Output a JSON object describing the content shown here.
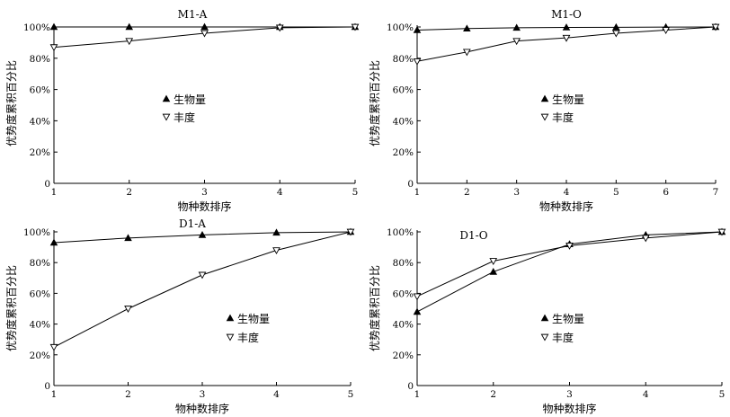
{
  "chart_data": [
    {
      "type": "line",
      "title": "M1-A",
      "xlabel": "物种数排序",
      "ylabel": "优势度累积百分比",
      "x": [
        1,
        2,
        3,
        4,
        5
      ],
      "xticks": [
        "1",
        "2",
        "3",
        "4",
        "5"
      ],
      "yticks": [
        "0",
        "20%",
        "40%",
        "60%",
        "80%",
        "100%"
      ],
      "ylim": [
        0,
        100
      ],
      "series": [
        {
          "name": "生物量",
          "marker": "filled-triangle",
          "values": [
            100,
            100,
            100,
            100,
            100
          ]
        },
        {
          "name": "丰度",
          "marker": "open-triangle-down",
          "values": [
            87,
            91,
            96,
            99.5,
            100
          ]
        }
      ]
    },
    {
      "type": "line",
      "title": "M1-O",
      "xlabel": "物种数排序",
      "ylabel": "优势度累积百分比",
      "x": [
        1,
        2,
        3,
        4,
        5,
        6,
        7
      ],
      "xticks": [
        "1",
        "2",
        "3",
        "4",
        "5",
        "6",
        "7"
      ],
      "yticks": [
        "0",
        "20%",
        "40%",
        "60%",
        "80%",
        "100%"
      ],
      "ylim": [
        0,
        100
      ],
      "series": [
        {
          "name": "生物量",
          "marker": "filled-triangle",
          "values": [
            98,
            99,
            99.5,
            99.7,
            99.8,
            99.9,
            100
          ]
        },
        {
          "name": "丰度",
          "marker": "open-triangle-down",
          "values": [
            78,
            84,
            91,
            93,
            96,
            98,
            100
          ]
        }
      ]
    },
    {
      "type": "line",
      "title": "D1-A",
      "xlabel": "物种数排序",
      "ylabel": "优势度累积百分比",
      "x": [
        1,
        2,
        3,
        4,
        5
      ],
      "xticks": [
        "1",
        "2",
        "3",
        "4",
        "5"
      ],
      "yticks": [
        "0",
        "20%",
        "40%",
        "60%",
        "80%",
        "100%"
      ],
      "ylim": [
        0,
        100
      ],
      "series": [
        {
          "name": "生物量",
          "marker": "filled-triangle",
          "values": [
            93,
            96,
            98,
            99.5,
            100
          ]
        },
        {
          "name": "丰度",
          "marker": "open-triangle-down",
          "values": [
            25,
            50,
            72,
            88,
            100
          ]
        }
      ]
    },
    {
      "type": "line",
      "title": "D1-O",
      "xlabel": "物种数排序",
      "ylabel": "优势度累积百分比",
      "x": [
        1,
        2,
        3,
        4,
        5
      ],
      "xticks": [
        "1",
        "2",
        "3",
        "4",
        "5"
      ],
      "yticks": [
        "0",
        "20%",
        "40%",
        "60%",
        "80%",
        "100%"
      ],
      "ylim": [
        0,
        100
      ],
      "series": [
        {
          "name": "生物量",
          "marker": "filled-triangle",
          "values": [
            48,
            74,
            92,
            98,
            100
          ]
        },
        {
          "name": "丰度",
          "marker": "open-triangle-down",
          "values": [
            58,
            81,
            91,
            96,
            100
          ]
        }
      ]
    }
  ]
}
